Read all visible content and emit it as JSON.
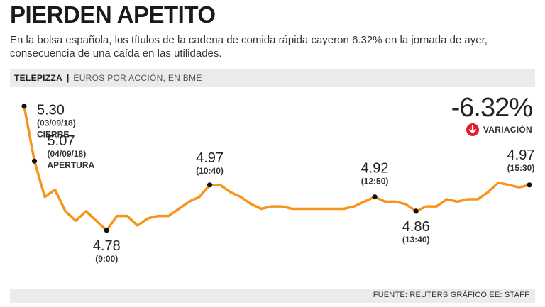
{
  "header": {
    "title": "PIERDEN APETITO",
    "subtitle": "En la bolsa española, los títulos de la cadena de comida rápida cayeron 6.32% en la jornada de ayer, consecuencia de una caída en las utilidades."
  },
  "bar": {
    "company": "TELEPIZZA",
    "separator": "|",
    "unit": "EUROS POR ACCIÓN, EN BME"
  },
  "variation": {
    "value": "-6.32%",
    "label": "VARIACIÓN",
    "icon": "arrow-down-circle-icon",
    "color": "#e0202a"
  },
  "footer": {
    "source": "FUENTE: REUTERS GRÁFICO EE: STAFF"
  },
  "chart_data": {
    "type": "line",
    "title": "PIERDEN APETITO",
    "ylabel": "EUROS POR ACCIÓN, EN BME",
    "ylim": [
      4.72,
      5.32
    ],
    "line_color": "#f7941d",
    "values": [
      5.3,
      5.07,
      4.92,
      4.95,
      4.86,
      4.82,
      4.86,
      4.82,
      4.78,
      4.84,
      4.84,
      4.8,
      4.83,
      4.84,
      4.84,
      4.87,
      4.9,
      4.92,
      4.97,
      4.97,
      4.94,
      4.92,
      4.89,
      4.87,
      4.88,
      4.88,
      4.87,
      4.87,
      4.87,
      4.87,
      4.87,
      4.87,
      4.88,
      4.9,
      4.92,
      4.9,
      4.9,
      4.89,
      4.86,
      4.88,
      4.88,
      4.91,
      4.9,
      4.91,
      4.91,
      4.94,
      4.98,
      4.97,
      4.96,
      4.97
    ],
    "annotations": [
      {
        "index": 0,
        "value": "5.30",
        "time": "(03/09/18)",
        "note": "CIERRE"
      },
      {
        "index": 1,
        "value": "5.07",
        "time": "(04/09/18)",
        "note": "APERTURA"
      },
      {
        "index": 8,
        "value": "4.78",
        "time": "(9:00)"
      },
      {
        "index": 18,
        "value": "4.97",
        "time": "(10:40)"
      },
      {
        "index": 34,
        "value": "4.92",
        "time": "(12:50)"
      },
      {
        "index": 38,
        "value": "4.86",
        "time": "(13:40)"
      },
      {
        "index": 49,
        "value": "4.97",
        "time": "(15:30)"
      }
    ]
  }
}
